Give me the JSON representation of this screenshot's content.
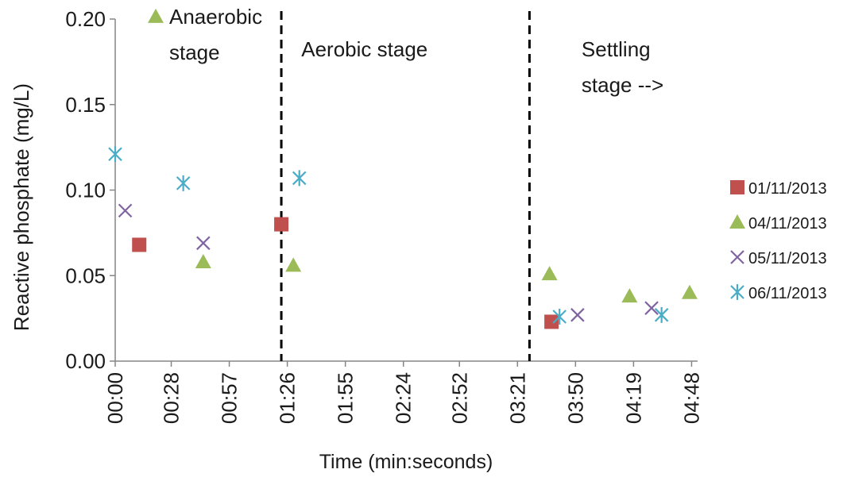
{
  "chart_data": {
    "type": "scatter",
    "xlabel": "Time (min:seconds)",
    "ylabel": "Reactive phosphate (mg/L)",
    "xlim": [
      0,
      291
    ],
    "ylim": [
      0,
      0.2
    ],
    "x_ticks": [
      {
        "t": 0,
        "label": "00:00"
      },
      {
        "t": 28,
        "label": "00:28"
      },
      {
        "t": 57,
        "label": "00:57"
      },
      {
        "t": 86,
        "label": "01:26"
      },
      {
        "t": 115,
        "label": "01:55"
      },
      {
        "t": 144,
        "label": "02:24"
      },
      {
        "t": 172,
        "label": "02:52"
      },
      {
        "t": 201,
        "label": "03:21"
      },
      {
        "t": 230,
        "label": "03:50"
      },
      {
        "t": 259,
        "label": "04:19"
      },
      {
        "t": 288,
        "label": "04:48"
      }
    ],
    "y_ticks": [
      {
        "v": 0,
        "label": "0.00"
      },
      {
        "v": 0.05,
        "label": "0.05"
      },
      {
        "v": 0.1,
        "label": "0.10"
      },
      {
        "v": 0.15,
        "label": "0.15"
      },
      {
        "v": 0.2,
        "label": "0.20"
      }
    ],
    "vlines": [
      83,
      207
    ],
    "annotations": [
      {
        "lines": [
          "Anaerobic",
          "stage"
        ],
        "marker": "triangle",
        "t": 27,
        "v": 0.201
      },
      {
        "lines": [
          "Aerobic stage"
        ],
        "marker": null,
        "t": 93,
        "v": 0.182
      },
      {
        "lines": [
          "Settling",
          "stage -->"
        ],
        "marker": null,
        "t": 233,
        "v": 0.182
      }
    ],
    "legend_position": "right",
    "series": [
      {
        "name": "01/11/2013",
        "marker": "square",
        "color": "#c0504d",
        "points": [
          [
            12,
            0.068
          ],
          [
            83,
            0.08
          ],
          [
            218,
            0.023
          ]
        ]
      },
      {
        "name": "04/11/2013",
        "marker": "triangle",
        "color": "#9bbb59",
        "points": [
          [
            44,
            0.058
          ],
          [
            89,
            0.056
          ],
          [
            217,
            0.051
          ],
          [
            257,
            0.038
          ],
          [
            287,
            0.04
          ]
        ]
      },
      {
        "name": "05/11/2013",
        "marker": "x",
        "color": "#8064a2",
        "points": [
          [
            5,
            0.088
          ],
          [
            44,
            0.069
          ],
          [
            231,
            0.027
          ],
          [
            268,
            0.031
          ]
        ]
      },
      {
        "name": "06/11/2013",
        "marker": "star",
        "color": "#4bacc6",
        "points": [
          [
            0,
            0.121
          ],
          [
            34,
            0.104
          ],
          [
            92,
            0.107
          ],
          [
            222,
            0.026
          ],
          [
            273,
            0.027
          ]
        ]
      }
    ]
  }
}
